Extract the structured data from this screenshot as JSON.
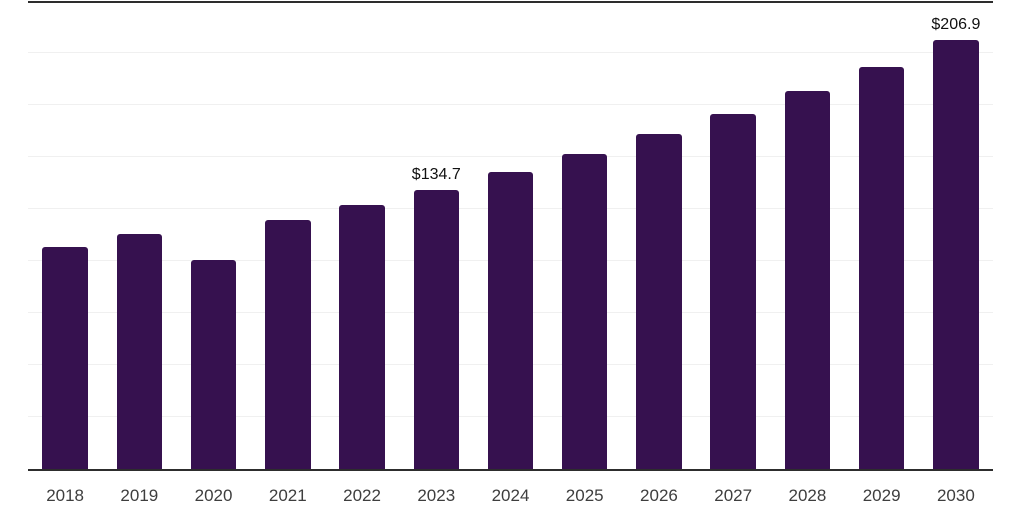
{
  "chart_data": {
    "type": "bar",
    "categories": [
      "2018",
      "2019",
      "2020",
      "2021",
      "2022",
      "2023",
      "2024",
      "2025",
      "2026",
      "2027",
      "2028",
      "2029",
      "2030"
    ],
    "values": [
      107.2,
      113.4,
      101.0,
      120.5,
      127.4,
      134.7,
      143.2,
      152.0,
      161.5,
      171.2,
      182.2,
      194.0,
      206.9
    ],
    "data_labels": [
      null,
      null,
      null,
      null,
      null,
      "$134.7",
      null,
      null,
      null,
      null,
      null,
      null,
      "$206.9"
    ],
    "title": "",
    "xlabel": "",
    "ylabel": "",
    "ylim": [
      0,
      225
    ],
    "gridline_step": 25,
    "grid": true,
    "legend_position": "none",
    "y_axis_labels_visible": false,
    "colors": {
      "bar": "#36114F",
      "gridline": "#f0f0f0",
      "axis_line": "#2d2d2d",
      "tick_label": "#3e3e3e",
      "data_label": "#111111",
      "background": "#ffffff"
    }
  }
}
